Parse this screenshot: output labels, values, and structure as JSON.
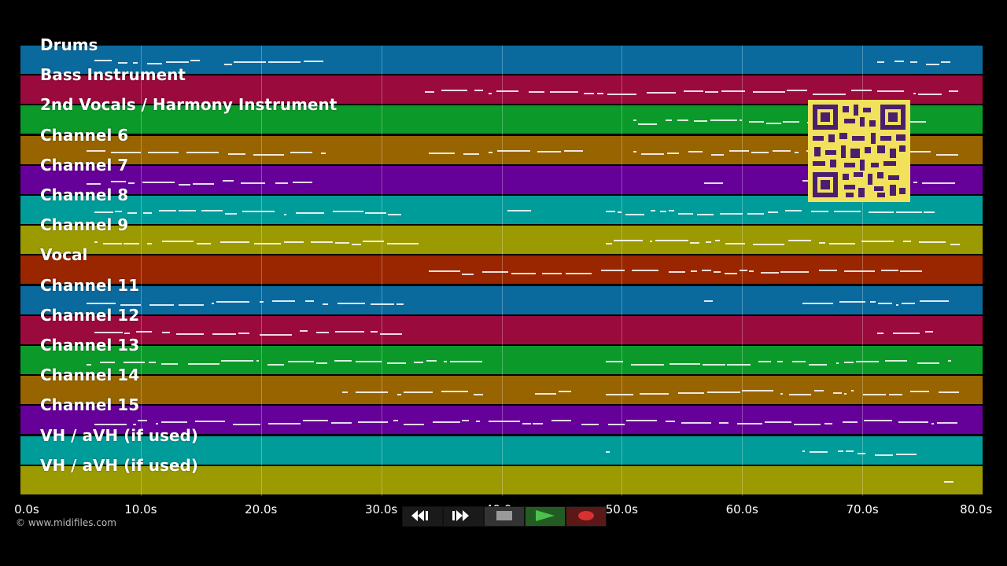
{
  "tracks": [
    {
      "label": "Drums",
      "color": "#0a6a9e"
    },
    {
      "label": "Bass Instrument",
      "color": "#9b0a3c"
    },
    {
      "label": "2nd Vocals / Harmony Instrument",
      "color": "#0b9a2a"
    },
    {
      "label": "Channel 6",
      "color": "#976400"
    },
    {
      "label": "Channel 7",
      "color": "#650099"
    },
    {
      "label": "Channel 8",
      "color": "#009c99"
    },
    {
      "label": "Channel 9",
      "color": "#9b9a00"
    },
    {
      "label": "Vocal",
      "color": "#9a2600"
    },
    {
      "label": "Channel 11",
      "color": "#0a6a9e"
    },
    {
      "label": "Channel 12",
      "color": "#9b0a3c"
    },
    {
      "label": "Channel 13",
      "color": "#0b9a2a"
    },
    {
      "label": "Channel 14",
      "color": "#976400"
    },
    {
      "label": "Channel 15",
      "color": "#650099"
    },
    {
      "label": "VH / aVH (if used)",
      "color": "#009c99"
    },
    {
      "label": "VH / aVH (if used)",
      "color": "#9b9a00"
    }
  ],
  "timeline": {
    "ticks": [
      "0.0s",
      "10.0s",
      "20.0s",
      "30.0s",
      "40.0s",
      "50.0s",
      "60.0s",
      "70.0s",
      "80.0s"
    ]
  },
  "copyright": "© www.midifiles.com",
  "transport": {
    "rewind_icon": "rewind-icon",
    "fastforward_icon": "fast-forward-icon",
    "stop_icon": "stop-icon",
    "play_icon": "play-icon",
    "record_icon": "record-icon",
    "play_color": "#3fa03f",
    "record_color": "#cc2b2b"
  },
  "overlay": {
    "qr_icon": "qr-code-icon"
  }
}
